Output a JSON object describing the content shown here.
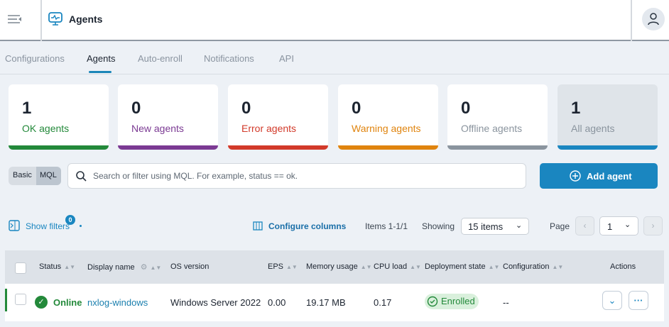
{
  "header": {
    "title": "Agents",
    "menu_icon": "collapse-menu-icon",
    "title_icon": "monitor-pulse-icon",
    "user_icon": "user-icon"
  },
  "tabs": [
    {
      "label": "Configurations"
    },
    {
      "label": "Agents",
      "active": true
    },
    {
      "label": "Auto-enroll"
    },
    {
      "label": "Notifications"
    },
    {
      "label": "API"
    }
  ],
  "cards": [
    {
      "count": "1",
      "label": "OK agents",
      "color": "#23893a"
    },
    {
      "count": "0",
      "label": "New agents",
      "color": "#7b3a93"
    },
    {
      "count": "0",
      "label": "Error agents",
      "color": "#d23a2a"
    },
    {
      "count": "0",
      "label": "Warning agents",
      "color": "#e0840e"
    },
    {
      "count": "0",
      "label": "Offline agents",
      "color": "#8a949e"
    },
    {
      "count": "1",
      "label": "All agents",
      "color": "#1a86c0"
    }
  ],
  "search": {
    "mode_basic": "Basic",
    "mode_mql": "MQL",
    "placeholder": "Search or filter using MQL. For example, status == ok.",
    "add_label": "Add agent"
  },
  "toolbar": {
    "show_filters": "Show filters",
    "filter_count": "0",
    "configure_columns": "Configure columns",
    "items": "Items 1-1/1",
    "showing_label": "Showing",
    "showing_value": "15 items",
    "page_label": "Page",
    "page_value": "1"
  },
  "table": {
    "headers": [
      "Status",
      "Display name",
      "OS version",
      "EPS",
      "Memory usage",
      "CPU load",
      "Deployment state",
      "Configuration",
      "Actions"
    ],
    "rows": [
      {
        "status": "Online",
        "name": "nxlog-windows",
        "os": "Windows Server 2022",
        "eps": "0.00",
        "memory": "19.17 MB",
        "cpu": "0.17",
        "deployment": "Enrolled",
        "configuration": "--"
      }
    ]
  }
}
